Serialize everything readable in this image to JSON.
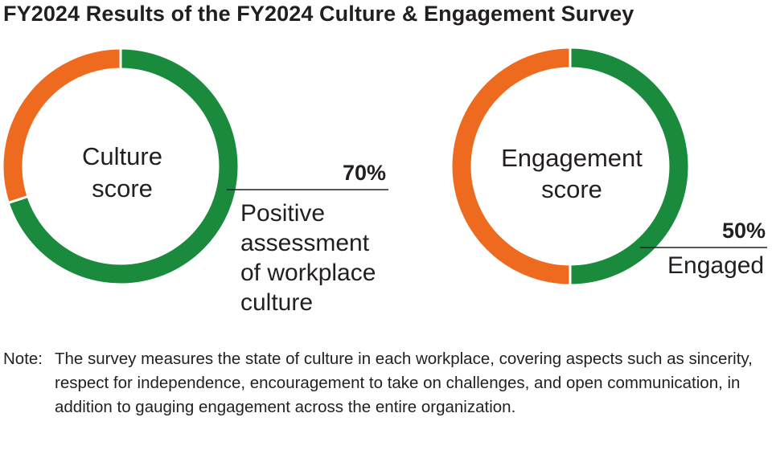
{
  "title": "FY2024 Results of the FY2024 Culture & Engagement Survey",
  "colors": {
    "positive": "#1a8a3d",
    "remainder": "#ee6a1f"
  },
  "chart_data": [
    {
      "type": "pie",
      "subtype": "donut",
      "center_label": [
        "Culture",
        "score"
      ],
      "value": 70,
      "value_label": "70%",
      "description": "Positive\nassessment\nof workplace\nculture",
      "slices": [
        {
          "value": 70,
          "color": "#1a8a3d"
        },
        {
          "value": 30,
          "color": "#ee6a1f"
        }
      ]
    },
    {
      "type": "pie",
      "subtype": "donut",
      "center_label": [
        "Engagement",
        "score"
      ],
      "value": 50,
      "value_label": "50%",
      "description": "Engaged",
      "slices": [
        {
          "value": 50,
          "color": "#1a8a3d"
        },
        {
          "value": 50,
          "color": "#ee6a1f"
        }
      ]
    }
  ],
  "note": {
    "prefix": "Note:",
    "text": "The survey measures the state of culture in each workplace, covering aspects such as sincerity, respect for independence, encouragement to take on challenges, and open communication, in addition to gauging engagement across the entire organization."
  }
}
